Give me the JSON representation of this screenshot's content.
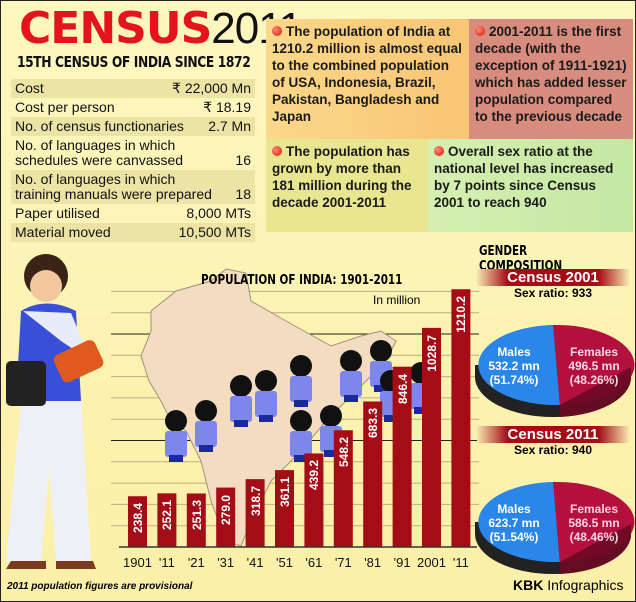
{
  "header": {
    "title_red": "CENSUS",
    "title_black": "2011",
    "subtitle": "15TH CENSUS OF INDIA SINCE 1872"
  },
  "stats": [
    {
      "label": "Cost",
      "value": "₹ 22,000 Mn"
    },
    {
      "label": "Cost per person",
      "value": "₹ 18.19"
    },
    {
      "label": "No. of census functionaries",
      "value": "2.7 Mn"
    },
    {
      "label": "No. of languages in which schedules were canvassed",
      "value": "16"
    },
    {
      "label": "No. of languages in which training manuals were prepared",
      "value": "18"
    },
    {
      "label": "Paper utilised",
      "value": "8,000 MTs"
    },
    {
      "label": "Material moved",
      "value": "10,500 MTs"
    }
  ],
  "facts": [
    "The population of India at 1210.2 million is almost equal to the combined population of USA, Indonesia, Brazil, Pakistan, Bangladesh and Japan",
    "2001-2011 is the first decade (with the exception of 1911-1921) which has added lesser population compared to the previous decade",
    "The population has grown by more than 181 million during the decade 2001-2011",
    "Overall sex ratio at the national level has increased by 7 points since Census 2001 to reach 940"
  ],
  "colors": {
    "bar": "#a50d16",
    "males": "#2a86e8",
    "females": "#b3103e",
    "title_red": "#e3141b"
  },
  "chart_data": [
    {
      "type": "bar",
      "title": "POPULATION OF INDIA: 1901-2011",
      "subtitle": "In million",
      "categories": [
        "1901",
        "'11",
        "'21",
        "'31",
        "'41",
        "'51",
        "'61",
        "'71",
        "'81",
        "'91",
        "2001",
        "'11"
      ],
      "values": [
        238.4,
        252.1,
        251.3,
        279.0,
        318.7,
        361.1,
        439.2,
        548.2,
        683.3,
        846.4,
        1028.7,
        1210.2
      ],
      "labels": [
        "238.4",
        "252.1",
        "251.3",
        "279.0",
        "318.7",
        "361.1",
        "439.2",
        "548.2",
        "683.3",
        "846.4",
        "1028.7",
        "1210.2"
      ],
      "ylim": [
        0,
        1250
      ],
      "grid": true,
      "footnote": "2011 population figures are provisional"
    },
    {
      "type": "pie",
      "section_title": "GENDER COMPOSITION",
      "title": "Census 2001",
      "subtitle": "Sex ratio: 933",
      "slices": [
        {
          "name": "Males",
          "value": 532.2,
          "value_label": "532.2 mn",
          "pct": "(51.74%)"
        },
        {
          "name": "Females",
          "value": 496.5,
          "value_label": "496.5 mn",
          "pct": "(48.26%)"
        }
      ]
    },
    {
      "type": "pie",
      "title": "Census 2011",
      "subtitle": "Sex ratio: 940",
      "slices": [
        {
          "name": "Males",
          "value": 623.7,
          "value_label": "623.7 mn",
          "pct": "(51.54%)"
        },
        {
          "name": "Females",
          "value": 586.5,
          "value_label": "586.5 mn",
          "pct": "(48.46%)"
        }
      ]
    }
  ],
  "credit": {
    "bold": "KBK",
    "rest": " Infographics"
  }
}
